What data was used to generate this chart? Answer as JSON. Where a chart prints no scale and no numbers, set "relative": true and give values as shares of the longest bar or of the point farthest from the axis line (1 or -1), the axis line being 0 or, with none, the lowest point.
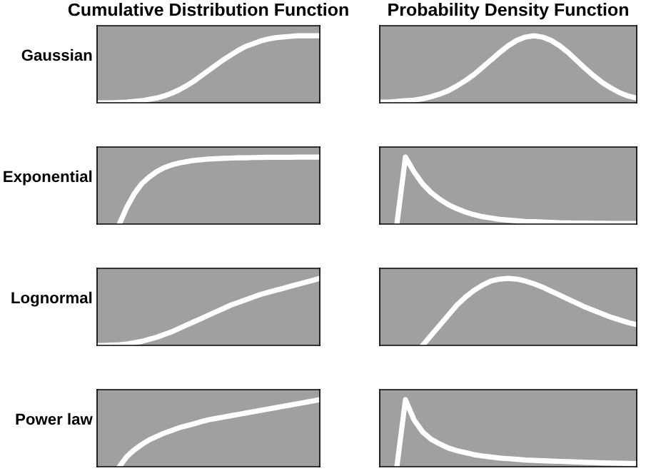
{
  "chart_data": [
    {
      "type": "line",
      "relative": true,
      "title": "Cumulative Distribution Function",
      "ylabel": "Gaussian",
      "categories": [
        null,
        null,
        null,
        null,
        null,
        null,
        null,
        null,
        null,
        null,
        null,
        null,
        null,
        null,
        null,
        null,
        null,
        null,
        null,
        null,
        null,
        null,
        null,
        null,
        null,
        null,
        null,
        null,
        null,
        null,
        null
      ],
      "series": [
        {
          "color": "#ffffff",
          "values": [
            0,
            0,
            0,
            0.005,
            0.01,
            0.02,
            0.03,
            0.05,
            0.07,
            0.1,
            0.14,
            0.19,
            0.25,
            0.32,
            0.4,
            0.48,
            0.56,
            0.64,
            0.71,
            0.78,
            0.84,
            0.88,
            0.92,
            0.95,
            0.97,
            0.98,
            0.99,
            1,
            1,
            1,
            1
          ]
        }
      ]
    },
    {
      "type": "line",
      "relative": true,
      "title": "Probability Density Function",
      "categories": [
        null,
        null,
        null,
        null,
        null,
        null,
        null,
        null,
        null,
        null,
        null,
        null,
        null,
        null,
        null,
        null,
        null,
        null,
        null,
        null,
        null,
        null,
        null,
        null,
        null,
        null,
        null,
        null,
        null,
        null,
        null
      ],
      "series": [
        {
          "color": "#ffffff",
          "values": [
            0.01,
            0.01,
            0.02,
            0.03,
            0.04,
            0.06,
            0.09,
            0.13,
            0.18,
            0.25,
            0.33,
            0.42,
            0.53,
            0.64,
            0.75,
            0.85,
            0.93,
            0.98,
            1,
            0.98,
            0.93,
            0.85,
            0.75,
            0.63,
            0.51,
            0.4,
            0.3,
            0.22,
            0.15,
            0.1,
            0.07
          ]
        }
      ]
    },
    {
      "type": "line",
      "relative": true,
      "ylabel": "Exponential",
      "categories": [
        null,
        null,
        null,
        null,
        null,
        null,
        null,
        null,
        null,
        null,
        null,
        null,
        null,
        null,
        null,
        null,
        null,
        null,
        null,
        null,
        null,
        null,
        null,
        null,
        null,
        null,
        null,
        null,
        null,
        null,
        null
      ],
      "series": [
        {
          "color": "#ffffff",
          "values": [
            null,
            null,
            null,
            0,
            0.25,
            0.45,
            0.6,
            0.7,
            0.78,
            0.84,
            0.88,
            0.91,
            0.93,
            0.95,
            0.96,
            0.97,
            0.975,
            0.98,
            0.985,
            0.99,
            0.99,
            0.993,
            0.995,
            0.996,
            0.997,
            0.998,
            0.998,
            0.999,
            1,
            1,
            1
          ]
        }
      ]
    },
    {
      "type": "line",
      "relative": true,
      "categories": [
        null,
        null,
        null,
        null,
        null,
        null,
        null,
        null,
        null,
        null,
        null,
        null,
        null,
        null,
        null,
        null,
        null,
        null,
        null,
        null,
        null,
        null,
        null,
        null,
        null,
        null,
        null,
        null,
        null,
        null,
        null
      ],
      "series": [
        {
          "color": "#ffffff",
          "values": [
            null,
            null,
            0,
            1,
            0.78,
            0.6,
            0.47,
            0.37,
            0.29,
            0.23,
            0.18,
            0.14,
            0.11,
            0.09,
            0.07,
            0.06,
            0.05,
            0.04,
            0.035,
            0.03,
            0.025,
            0.02,
            0.018,
            0.016,
            0.014,
            0.012,
            0.011,
            0.01,
            0.01,
            0.01,
            0.01
          ]
        }
      ]
    },
    {
      "type": "line",
      "relative": true,
      "ylabel": "Lognormal",
      "categories": [
        null,
        null,
        null,
        null,
        null,
        null,
        null,
        null,
        null,
        null,
        null,
        null,
        null,
        null,
        null,
        null,
        null,
        null,
        null,
        null,
        null,
        null,
        null,
        null,
        null,
        null,
        null,
        null,
        null,
        null,
        null
      ],
      "series": [
        {
          "color": "#ffffff",
          "values": [
            0,
            0,
            0.005,
            0.01,
            0.02,
            0.04,
            0.06,
            0.09,
            0.12,
            0.16,
            0.2,
            0.25,
            0.3,
            0.35,
            0.4,
            0.45,
            0.5,
            0.55,
            0.6,
            0.64,
            0.68,
            0.72,
            0.76,
            0.79,
            0.82,
            0.85,
            0.88,
            0.91,
            0.94,
            0.97,
            1
          ]
        }
      ]
    },
    {
      "type": "line",
      "relative": true,
      "categories": [
        null,
        null,
        null,
        null,
        null,
        null,
        null,
        null,
        null,
        null,
        null,
        null,
        null,
        null,
        null,
        null,
        null,
        null,
        null,
        null,
        null,
        null,
        null,
        null,
        null,
        null,
        null,
        null,
        null,
        null,
        null
      ],
      "series": [
        {
          "color": "#ffffff",
          "values": [
            null,
            null,
            null,
            null,
            null,
            0,
            0.15,
            0.3,
            0.45,
            0.6,
            0.72,
            0.82,
            0.9,
            0.96,
            0.99,
            1,
            0.99,
            0.96,
            0.92,
            0.87,
            0.81,
            0.75,
            0.69,
            0.63,
            0.57,
            0.52,
            0.47,
            0.42,
            0.38,
            0.34,
            0.31
          ]
        }
      ]
    },
    {
      "type": "line",
      "relative": true,
      "ylabel": "Power law",
      "categories": [
        null,
        null,
        null,
        null,
        null,
        null,
        null,
        null,
        null,
        null,
        null,
        null,
        null,
        null,
        null,
        null,
        null,
        null,
        null,
        null,
        null,
        null,
        null,
        null,
        null,
        null,
        null,
        null,
        null,
        null,
        null
      ],
      "series": [
        {
          "color": "#ffffff",
          "values": [
            null,
            null,
            null,
            0,
            0.15,
            0.25,
            0.33,
            0.4,
            0.45,
            0.5,
            0.54,
            0.58,
            0.61,
            0.64,
            0.67,
            0.7,
            0.72,
            0.74,
            0.76,
            0.78,
            0.8,
            0.82,
            0.84,
            0.86,
            0.88,
            0.9,
            0.92,
            0.94,
            0.96,
            0.98,
            1
          ]
        }
      ]
    },
    {
      "type": "line",
      "relative": true,
      "categories": [
        null,
        null,
        null,
        null,
        null,
        null,
        null,
        null,
        null,
        null,
        null,
        null,
        null,
        null,
        null,
        null,
        null,
        null,
        null,
        null,
        null,
        null,
        null,
        null,
        null,
        null,
        null,
        null,
        null,
        null,
        null
      ],
      "series": [
        {
          "color": "#ffffff",
          "values": [
            null,
            null,
            0,
            1,
            0.7,
            0.52,
            0.41,
            0.34,
            0.28,
            0.24,
            0.21,
            0.18,
            0.16,
            0.145,
            0.13,
            0.12,
            0.11,
            0.1,
            0.095,
            0.09,
            0.085,
            0.08,
            0.075,
            0.07,
            0.066,
            0.062,
            0.058,
            0.055,
            0.052,
            0.05,
            0.048
          ]
        }
      ]
    }
  ]
}
